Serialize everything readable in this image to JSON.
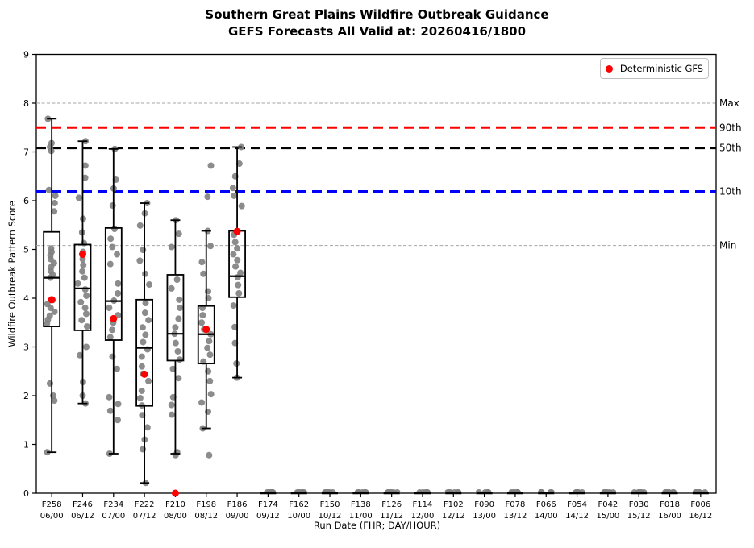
{
  "title": {
    "line1": "Southern Great Plains Wildfire Outbreak Guidance",
    "line2": "GEFS Forecasts All Valid at: 20260416/1800"
  },
  "legend": {
    "label": "Deterministic GFS",
    "marker_color": "#ff0000"
  },
  "axes": {
    "y_label": "Wildfire Outbreak Pattern Score",
    "x_label": "Run Date (FHR; DAY/HOUR)",
    "y_min": 0,
    "y_max": 9
  },
  "chart_data": {
    "type": "boxplot",
    "y_min": 0,
    "y_max": 9,
    "y_tick_step": 1,
    "legend_position": "upper-right",
    "colors": {
      "member_dot": "#808080",
      "deterministic_dot": "#ff0000",
      "box": "#000000",
      "p90": "#ff0000",
      "p50": "#000000",
      "p10": "#0000ff",
      "minmax": "#a6a6a6"
    },
    "reference_lines": [
      {
        "label": "Max",
        "value": 8.0,
        "color": "#a6a6a6",
        "width": 1,
        "dash": "4 2.5"
      },
      {
        "label": "90th",
        "value": 7.5,
        "color": "#ff0000",
        "width": 3,
        "dash": "12 7"
      },
      {
        "label": "50th",
        "value": 7.08,
        "color": "#000000",
        "width": 3,
        "dash": "12 7"
      },
      {
        "label": "10th",
        "value": 6.19,
        "color": "#0000ff",
        "width": 3,
        "dash": "12 7"
      },
      {
        "label": "Min",
        "value": 5.08,
        "color": "#a6a6a6",
        "width": 1,
        "dash": "4 2.5"
      }
    ],
    "series": [
      {
        "fhr": "F258",
        "run": "06/00",
        "det": 3.97,
        "box": {
          "lo": 0.84,
          "q1": 3.42,
          "med": 4.42,
          "q3": 5.36,
          "hi": 7.68
        },
        "points": [
          7.68,
          7.18,
          7.1,
          7.02,
          6.22,
          6.1,
          5.95,
          5.78,
          5.02,
          4.95,
          4.88,
          4.8,
          4.72,
          4.64,
          4.56,
          4.48,
          4.42,
          3.96,
          3.88,
          3.8,
          3.72,
          3.64,
          3.56,
          3.48,
          2.25,
          2.0,
          1.9,
          0.84
        ]
      },
      {
        "fhr": "F246",
        "run": "06/12",
        "det": 4.9,
        "box": {
          "lo": 1.84,
          "q1": 3.34,
          "med": 4.2,
          "q3": 5.1,
          "hi": 7.22
        },
        "points": [
          7.22,
          6.72,
          6.47,
          6.06,
          5.63,
          5.35,
          5.13,
          4.95,
          4.8,
          4.68,
          4.55,
          4.42,
          4.3,
          4.18,
          4.05,
          3.92,
          3.8,
          3.68,
          3.55,
          3.42,
          3.0,
          2.83,
          2.28,
          2.0,
          1.84
        ]
      },
      {
        "fhr": "F234",
        "run": "07/00",
        "det": 3.58,
        "box": {
          "lo": 0.81,
          "q1": 3.14,
          "med": 3.94,
          "q3": 5.44,
          "hi": 7.06
        },
        "points": [
          7.06,
          6.43,
          6.25,
          5.9,
          5.42,
          5.22,
          5.05,
          4.9,
          4.7,
          4.3,
          4.1,
          3.95,
          3.8,
          3.65,
          3.5,
          3.35,
          3.2,
          2.8,
          2.55,
          1.97,
          1.83,
          1.69,
          1.5,
          0.81
        ]
      },
      {
        "fhr": "F222",
        "run": "07/12",
        "det": 2.44,
        "box": {
          "lo": 0.21,
          "q1": 1.79,
          "med": 2.98,
          "q3": 3.97,
          "hi": 5.95
        },
        "points": [
          5.95,
          5.74,
          5.49,
          4.99,
          4.77,
          4.5,
          4.28,
          3.9,
          3.7,
          3.55,
          3.4,
          3.25,
          3.1,
          2.95,
          2.8,
          2.6,
          2.45,
          2.3,
          2.1,
          1.95,
          1.8,
          1.6,
          1.35,
          1.1,
          0.9,
          0.21
        ]
      },
      {
        "fhr": "F210",
        "run": "08/00",
        "det": 0.0,
        "box": {
          "lo": 0.81,
          "q1": 2.72,
          "med": 3.27,
          "q3": 4.48,
          "hi": 5.6
        },
        "points": [
          5.6,
          5.32,
          5.05,
          4.38,
          4.2,
          3.97,
          3.8,
          3.58,
          3.4,
          3.27,
          3.08,
          2.91,
          2.74,
          2.55,
          2.36,
          1.97,
          1.81,
          1.61,
          0.84,
          0.78
        ]
      },
      {
        "fhr": "F198",
        "run": "08/12",
        "det": 3.36,
        "box": {
          "lo": 1.33,
          "q1": 2.66,
          "med": 3.26,
          "q3": 3.84,
          "hi": 5.38
        },
        "points": [
          6.72,
          6.08,
          5.38,
          5.07,
          4.74,
          4.5,
          4.14,
          4.0,
          3.8,
          3.65,
          3.5,
          3.36,
          3.26,
          3.12,
          2.98,
          2.84,
          2.7,
          2.5,
          2.3,
          2.03,
          1.86,
          1.67,
          1.33,
          0.78
        ]
      },
      {
        "fhr": "F186",
        "run": "09/00",
        "det": 5.37,
        "box": {
          "lo": 2.37,
          "q1": 4.02,
          "med": 4.45,
          "q3": 5.38,
          "hi": 7.1
        },
        "points": [
          7.1,
          6.76,
          6.5,
          6.26,
          6.1,
          5.89,
          5.3,
          5.15,
          5.02,
          4.9,
          4.78,
          4.65,
          4.52,
          4.43,
          4.27,
          4.1,
          3.85,
          3.41,
          3.08,
          2.66,
          2.37
        ]
      },
      {
        "fhr": "F174",
        "run": "09/12",
        "det": null,
        "box": {
          "lo": 0,
          "q1": 0,
          "med": 0,
          "q3": 0,
          "hi": 0
        },
        "points": [
          0,
          0,
          0,
          0,
          0,
          0
        ]
      },
      {
        "fhr": "F162",
        "run": "10/00",
        "det": null,
        "box": {
          "lo": 0,
          "q1": 0,
          "med": 0,
          "q3": 0,
          "hi": 0
        },
        "points": [
          0,
          0,
          0,
          0,
          0,
          0
        ]
      },
      {
        "fhr": "F150",
        "run": "10/12",
        "det": null,
        "box": {
          "lo": 0,
          "q1": 0,
          "med": 0,
          "q3": 0,
          "hi": 0
        },
        "points": [
          0,
          0,
          0,
          0,
          0,
          0
        ]
      },
      {
        "fhr": "F138",
        "run": "11/00",
        "det": null,
        "box": {
          "lo": 0,
          "q1": 0,
          "med": 0,
          "q3": 0,
          "hi": 0
        },
        "points": [
          0,
          0,
          0,
          0,
          0,
          0
        ]
      },
      {
        "fhr": "F126",
        "run": "11/12",
        "det": null,
        "box": {
          "lo": 0,
          "q1": 0,
          "med": 0,
          "q3": 0,
          "hi": 0
        },
        "points": [
          0,
          0,
          0,
          0,
          0,
          0
        ]
      },
      {
        "fhr": "F114",
        "run": "12/00",
        "det": null,
        "box": {
          "lo": 0,
          "q1": 0,
          "med": 0,
          "q3": 0,
          "hi": 0
        },
        "points": [
          0,
          0,
          0,
          0,
          0,
          0
        ]
      },
      {
        "fhr": "F102",
        "run": "12/12",
        "det": null,
        "box": {
          "lo": 0,
          "q1": 0,
          "med": 0,
          "q3": 0,
          "hi": 0
        },
        "points": [
          0,
          0,
          0,
          0,
          0,
          0
        ]
      },
      {
        "fhr": "F090",
        "run": "13/00",
        "det": null,
        "box": {
          "lo": 0,
          "q1": 0,
          "med": 0,
          "q3": 0,
          "hi": 0
        },
        "points": [
          0,
          0,
          0,
          0,
          0,
          0
        ]
      },
      {
        "fhr": "F078",
        "run": "13/12",
        "det": null,
        "box": {
          "lo": 0,
          "q1": 0,
          "med": 0,
          "q3": 0,
          "hi": 0
        },
        "points": [
          0,
          0,
          0,
          0,
          0,
          0
        ]
      },
      {
        "fhr": "F066",
        "run": "14/00",
        "det": null,
        "box": {
          "lo": 0,
          "q1": 0,
          "med": 0,
          "q3": 0,
          "hi": 0
        },
        "points": [
          0,
          0,
          0,
          0,
          0,
          0
        ]
      },
      {
        "fhr": "F054",
        "run": "14/12",
        "det": null,
        "box": {
          "lo": 0,
          "q1": 0,
          "med": 0,
          "q3": 0,
          "hi": 0
        },
        "points": [
          0,
          0,
          0,
          0,
          0,
          0
        ]
      },
      {
        "fhr": "F042",
        "run": "15/00",
        "det": null,
        "box": {
          "lo": 0,
          "q1": 0,
          "med": 0,
          "q3": 0,
          "hi": 0
        },
        "points": [
          0,
          0,
          0,
          0,
          0,
          0
        ]
      },
      {
        "fhr": "F030",
        "run": "15/12",
        "det": null,
        "box": {
          "lo": 0,
          "q1": 0,
          "med": 0,
          "q3": 0,
          "hi": 0
        },
        "points": [
          0,
          0,
          0,
          0,
          0,
          0
        ]
      },
      {
        "fhr": "F018",
        "run": "16/00",
        "det": null,
        "box": {
          "lo": 0,
          "q1": 0,
          "med": 0,
          "q3": 0,
          "hi": 0
        },
        "points": [
          0,
          0,
          0,
          0,
          0,
          0
        ]
      },
      {
        "fhr": "F006",
        "run": "16/12",
        "det": null,
        "box": {
          "lo": 0,
          "q1": 0,
          "med": 0,
          "q3": 0,
          "hi": 0
        },
        "points": [
          0,
          0,
          0,
          0,
          0,
          0
        ]
      }
    ]
  }
}
